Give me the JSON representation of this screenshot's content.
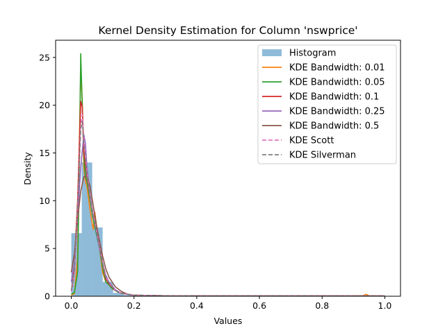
{
  "chart_data": {
    "type": "line",
    "title": "Kernel Density Estimation for Column 'nswprice'",
    "xlabel": "Values",
    "ylabel": "Density",
    "xlim": [
      -0.05,
      1.05
    ],
    "ylim": [
      0,
      26.8
    ],
    "x_ticks": [
      0.0,
      0.2,
      0.4,
      0.6,
      0.8,
      1.0
    ],
    "x_tick_labels": [
      "0.0",
      "0.2",
      "0.4",
      "0.6",
      "0.8",
      "1.0"
    ],
    "y_ticks": [
      0,
      5,
      10,
      15,
      20,
      25
    ],
    "y_tick_labels": [
      "0",
      "5",
      "10",
      "15",
      "20",
      "25"
    ],
    "grid": false,
    "legend_position": "top-right",
    "histogram": {
      "name": "Histogram",
      "color": "#8fbbd9",
      "bin_edges": [
        0.0,
        0.0333,
        0.0667,
        0.1,
        0.1333,
        0.1667,
        0.2,
        0.2333,
        0.2667,
        0.3,
        0.3333,
        0.3667,
        0.4,
        0.4333,
        0.4667,
        0.5,
        0.5333,
        0.5667,
        0.6,
        0.6333,
        0.6667,
        0.7,
        0.7333,
        0.7667,
        0.8,
        0.8333,
        0.8667,
        0.9,
        0.9333,
        0.9667,
        1.0
      ],
      "values": [
        6.6,
        14.0,
        7.2,
        1.5,
        0.35,
        0.12,
        0.06,
        0.04,
        0.03,
        0.02,
        0.02,
        0.01,
        0.01,
        0.01,
        0.01,
        0.01,
        0.01,
        0.01,
        0.01,
        0.01,
        0.01,
        0.01,
        0.01,
        0.01,
        0.01,
        0.01,
        0.01,
        0.01,
        0.01,
        0.01
      ]
    },
    "series": [
      {
        "name": "KDE Bandwidth: 0.01",
        "color": "#ff7f0e",
        "style": "solid",
        "x": [
          0.0,
          0.01,
          0.02,
          0.025,
          0.03,
          0.035,
          0.04,
          0.045,
          0.05,
          0.06,
          0.07,
          0.075,
          0.08,
          0.085,
          0.09,
          0.1,
          0.11,
          0.12,
          0.13,
          0.15,
          0.2,
          0.3,
          0.4,
          0.6,
          0.8,
          0.93,
          0.94,
          0.95,
          1.0
        ],
        "y": [
          0.1,
          0.3,
          4.0,
          15.0,
          23.5,
          20.5,
          13.5,
          12.0,
          11.5,
          9.0,
          7.0,
          8.8,
          7.5,
          6.5,
          5.0,
          2.5,
          1.5,
          1.2,
          0.8,
          0.4,
          0.1,
          0.05,
          0.03,
          0.03,
          0.03,
          0.05,
          0.2,
          0.05,
          0.02
        ]
      },
      {
        "name": "KDE Bandwidth: 0.05",
        "color": "#2ca02c",
        "style": "solid",
        "x": [
          0.0,
          0.01,
          0.02,
          0.025,
          0.03,
          0.035,
          0.04,
          0.045,
          0.05,
          0.06,
          0.07,
          0.08,
          0.09,
          0.1,
          0.11,
          0.12,
          0.13,
          0.15,
          0.2,
          0.3,
          0.5,
          0.8,
          1.0
        ],
        "y": [
          0.2,
          0.4,
          2.5,
          12.0,
          25.4,
          20.0,
          14.5,
          12.5,
          12.0,
          10.0,
          8.0,
          6.5,
          5.0,
          3.0,
          1.5,
          1.2,
          0.8,
          0.4,
          0.1,
          0.05,
          0.03,
          0.03,
          0.02
        ]
      },
      {
        "name": "KDE Bandwidth: 0.1",
        "color": "#d62728",
        "style": "solid",
        "x": [
          0.0,
          0.005,
          0.01,
          0.02,
          0.03,
          0.035,
          0.04,
          0.05,
          0.06,
          0.07,
          0.08,
          0.09,
          0.1,
          0.11,
          0.12,
          0.14,
          0.16,
          0.2,
          0.3,
          0.5,
          0.8,
          1.0
        ],
        "y": [
          0.5,
          1.5,
          3.5,
          10.0,
          20.4,
          19.8,
          15.0,
          12.5,
          10.5,
          8.5,
          7.0,
          5.5,
          3.5,
          1.8,
          1.3,
          0.6,
          0.3,
          0.1,
          0.04,
          0.03,
          0.03,
          0.02
        ]
      },
      {
        "name": "KDE Bandwidth: 0.25",
        "color": "#9467bd",
        "style": "solid",
        "x": [
          0.0,
          0.01,
          0.02,
          0.03,
          0.04,
          0.045,
          0.05,
          0.06,
          0.07,
          0.08,
          0.09,
          0.1,
          0.11,
          0.12,
          0.14,
          0.16,
          0.2,
          0.3,
          0.5,
          0.8,
          1.0
        ],
        "y": [
          1.5,
          3.5,
          8.0,
          13.5,
          16.9,
          16.0,
          13.5,
          10.5,
          8.5,
          6.8,
          5.0,
          3.5,
          2.2,
          1.5,
          0.7,
          0.3,
          0.1,
          0.04,
          0.03,
          0.03,
          0.02
        ]
      },
      {
        "name": "KDE Bandwidth: 0.5",
        "color": "#8c564b",
        "style": "solid",
        "x": [
          0.0,
          0.01,
          0.02,
          0.03,
          0.04,
          0.05,
          0.06,
          0.07,
          0.08,
          0.09,
          0.1,
          0.11,
          0.12,
          0.14,
          0.16,
          0.18,
          0.2,
          0.3,
          0.5,
          0.8,
          1.0
        ],
        "y": [
          2.5,
          4.5,
          8.0,
          11.0,
          12.5,
          12.6,
          11.5,
          9.5,
          7.5,
          5.8,
          4.2,
          2.9,
          2.0,
          1.0,
          0.5,
          0.2,
          0.1,
          0.05,
          0.03,
          0.03,
          0.02
        ]
      },
      {
        "name": "KDE Scott",
        "color": "#e377c2",
        "style": "dashed",
        "x": [
          0.0,
          0.01,
          0.02,
          0.03,
          0.035,
          0.04,
          0.05,
          0.06,
          0.07,
          0.08,
          0.09,
          0.1,
          0.11,
          0.12,
          0.14,
          0.16,
          0.2,
          0.3,
          0.5,
          0.8,
          1.0
        ],
        "y": [
          0.5,
          2.5,
          9.0,
          18.0,
          19.0,
          16.5,
          13.0,
          10.5,
          8.5,
          7.0,
          5.3,
          3.5,
          2.0,
          1.4,
          0.6,
          0.3,
          0.1,
          0.04,
          0.03,
          0.03,
          0.02
        ]
      },
      {
        "name": "KDE Silverman",
        "color": "#7f7f7f",
        "style": "dashed",
        "x": [
          0.0,
          0.01,
          0.02,
          0.03,
          0.035,
          0.04,
          0.05,
          0.06,
          0.07,
          0.08,
          0.09,
          0.1,
          0.11,
          0.12,
          0.14,
          0.16,
          0.2,
          0.3,
          0.5,
          0.8,
          1.0
        ],
        "y": [
          0.6,
          2.8,
          9.5,
          17.5,
          18.3,
          16.0,
          12.8,
          10.3,
          8.4,
          6.9,
          5.2,
          3.5,
          2.0,
          1.4,
          0.6,
          0.3,
          0.1,
          0.04,
          0.03,
          0.03,
          0.02
        ]
      }
    ]
  }
}
